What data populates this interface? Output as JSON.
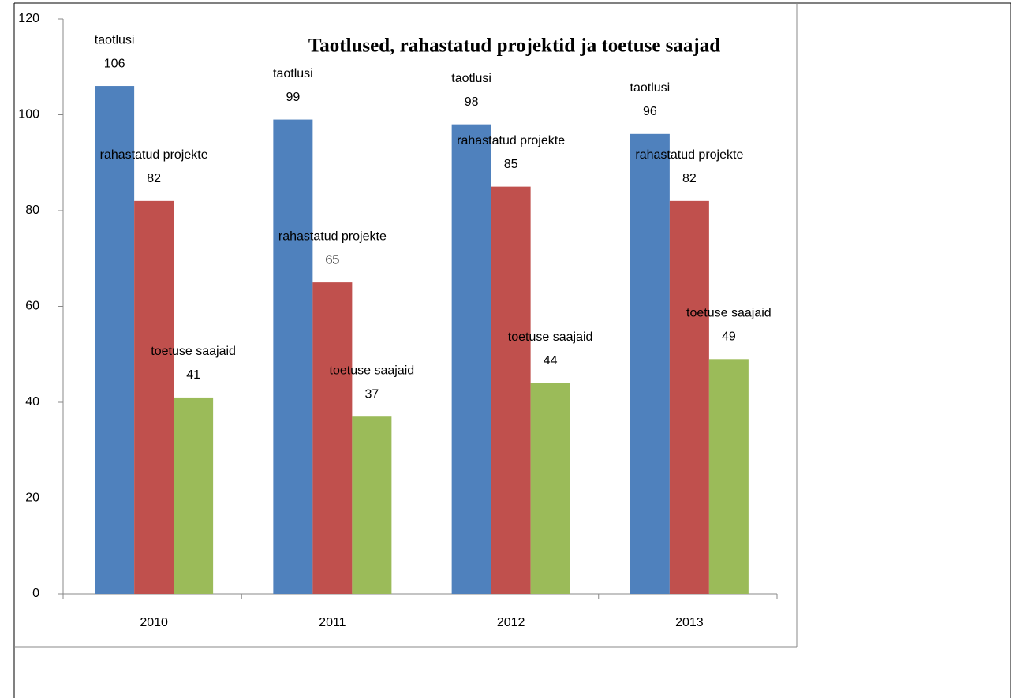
{
  "chart_data": {
    "type": "bar",
    "title": "Taotlused, rahastatud projektid ja toetuse saajad",
    "categories": [
      "2010",
      "2011",
      "2012",
      "2013"
    ],
    "series": [
      {
        "name": "taotlusi",
        "color": "#4f81bd",
        "values": [
          106,
          99,
          98,
          96
        ]
      },
      {
        "name": "rahastatud projekte",
        "color": "#c0504d",
        "values": [
          82,
          65,
          85,
          82
        ]
      },
      {
        "name": "toetuse saajaid",
        "color": "#9bbb59",
        "values": [
          41,
          37,
          44,
          49
        ]
      }
    ],
    "ylim": [
      0,
      120
    ],
    "yticks": [
      0,
      20,
      40,
      60,
      80,
      100,
      120
    ],
    "grid": false
  }
}
